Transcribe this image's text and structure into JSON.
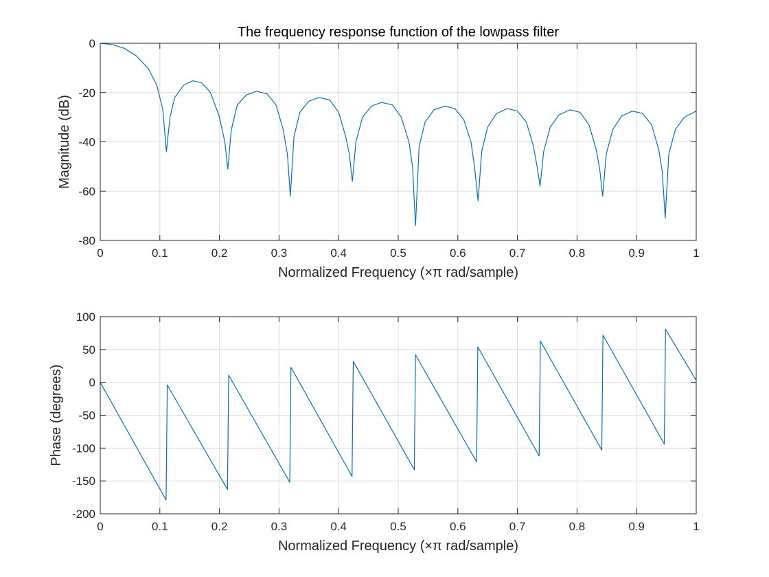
{
  "chart_data": [
    {
      "type": "line",
      "title": "The frequency response function of the lowpass filter",
      "xlabel": "Normalized Frequency  (×π rad/sample)",
      "ylabel": "Magnitude (dB)",
      "xlim": [
        0,
        1
      ],
      "ylim": [
        -80,
        0
      ],
      "xticks": [
        0,
        0.1,
        0.2,
        0.3,
        0.4,
        0.5,
        0.6,
        0.7,
        0.8,
        0.9,
        1
      ],
      "yticks": [
        0,
        -20,
        -40,
        -60,
        -80
      ],
      "xtick_labels": [
        "0",
        "0.1",
        "0.2",
        "0.3",
        "0.4",
        "0.5",
        "0.6",
        "0.7",
        "0.8",
        "0.9",
        "1"
      ],
      "ytick_labels": [
        "0",
        "-20",
        "-40",
        "-60",
        "-80"
      ],
      "grid": true,
      "line_color": "#0072bd",
      "x": [
        0,
        0.02,
        0.04,
        0.06,
        0.08,
        0.095,
        0.105,
        0.111,
        0.117,
        0.125,
        0.14,
        0.155,
        0.17,
        0.185,
        0.2,
        0.209,
        0.214,
        0.22,
        0.23,
        0.245,
        0.262,
        0.28,
        0.295,
        0.307,
        0.314,
        0.319,
        0.325,
        0.335,
        0.35,
        0.367,
        0.385,
        0.4,
        0.412,
        0.418,
        0.423,
        0.429,
        0.44,
        0.455,
        0.472,
        0.49,
        0.505,
        0.518,
        0.524,
        0.529,
        0.535,
        0.545,
        0.56,
        0.578,
        0.595,
        0.61,
        0.622,
        0.628,
        0.634,
        0.64,
        0.65,
        0.665,
        0.683,
        0.7,
        0.715,
        0.727,
        0.733,
        0.738,
        0.744,
        0.755,
        0.77,
        0.788,
        0.805,
        0.82,
        0.832,
        0.838,
        0.843,
        0.849,
        0.86,
        0.875,
        0.893,
        0.91,
        0.925,
        0.937,
        0.943,
        0.948,
        0.954,
        0.965,
        0.98,
        1.0
      ],
      "y": [
        0,
        -0.5,
        -2,
        -5,
        -10,
        -17,
        -27,
        -44,
        -30,
        -22,
        -17,
        -15.2,
        -16,
        -20,
        -30,
        -40,
        -51,
        -35,
        -25,
        -21,
        -19.5,
        -20.5,
        -25,
        -35,
        -45,
        -62,
        -38,
        -28,
        -23.5,
        -22,
        -23,
        -28,
        -38,
        -45,
        -56,
        -40,
        -30,
        -25.5,
        -24,
        -25,
        -30,
        -40,
        -50,
        -74,
        -42,
        -32,
        -27,
        -25.5,
        -26.5,
        -31,
        -40,
        -50,
        -64,
        -44,
        -34,
        -28.5,
        -26.5,
        -27.5,
        -32,
        -42,
        -50,
        -58,
        -44,
        -34,
        -29,
        -27,
        -28,
        -33,
        -43,
        -51,
        -62,
        -45,
        -35,
        -29.5,
        -27.5,
        -28.5,
        -33,
        -43,
        -52,
        -71,
        -45,
        -35,
        -30,
        -27.5
      ]
    },
    {
      "type": "line",
      "title": "",
      "xlabel": "Normalized Frequency  (×π rad/sample)",
      "ylabel": "Phase (degrees)",
      "xlim": [
        0,
        1
      ],
      "ylim": [
        -200,
        100
      ],
      "xticks": [
        0,
        0.1,
        0.2,
        0.3,
        0.4,
        0.5,
        0.6,
        0.7,
        0.8,
        0.9,
        1
      ],
      "yticks": [
        100,
        50,
        0,
        -50,
        -100,
        -150,
        -200
      ],
      "xtick_labels": [
        "0",
        "0.1",
        "0.2",
        "0.3",
        "0.4",
        "0.5",
        "0.6",
        "0.7",
        "0.8",
        "0.9",
        "1"
      ],
      "ytick_labels": [
        "100",
        "50",
        "0",
        "-50",
        "-100",
        "-150",
        "-200"
      ],
      "grid": true,
      "line_color": "#0072bd",
      "x": [
        0,
        0.1105,
        0.1125,
        0.2135,
        0.2155,
        0.318,
        0.32,
        0.4225,
        0.4245,
        0.527,
        0.529,
        0.6315,
        0.6335,
        0.7365,
        0.7385,
        0.8415,
        0.8435,
        0.9465,
        0.9485,
        1.0
      ],
      "y": [
        0,
        -179,
        -4,
        -163,
        11,
        -152,
        23,
        -143,
        32,
        -133,
        42,
        -121,
        54,
        -112,
        63,
        -103,
        72,
        -94,
        81,
        3
      ]
    }
  ]
}
